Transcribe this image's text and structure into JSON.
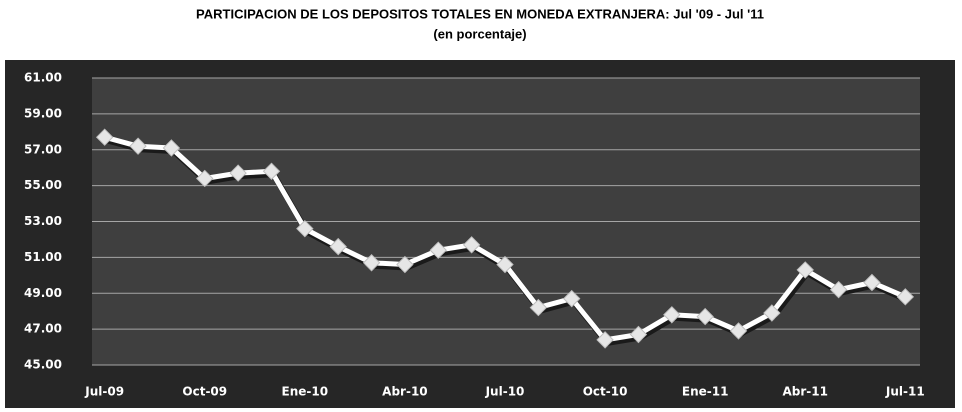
{
  "chart_data": {
    "type": "line",
    "title": "PARTICIPACION DE LOS DEPOSITOS TOTALES EN MONEDA EXTRANJERA: Jul '09 - Jul '11",
    "subtitle": "(en porcentaje)",
    "categories": [
      "Jul-09",
      null,
      null,
      "Oct-09",
      null,
      null,
      "Ene-10",
      null,
      null,
      "Abr-10",
      null,
      null,
      "Jul-10",
      null,
      null,
      "Oct-10",
      null,
      null,
      "Ene-11",
      null,
      null,
      "Abr-11",
      null,
      null,
      "Jul-11"
    ],
    "values": [
      57.7,
      57.2,
      57.1,
      55.4,
      55.7,
      55.8,
      52.6,
      51.6,
      50.7,
      50.6,
      51.4,
      51.7,
      50.6,
      48.2,
      48.7,
      46.4,
      46.7,
      47.8,
      47.7,
      46.9,
      47.9,
      50.3,
      49.2,
      49.6,
      48.8
    ],
    "color": "#ffffff",
    "ylim": [
      45,
      61
    ],
    "yticks": [
      {
        "value": 45,
        "label": "45.00"
      },
      {
        "value": 47,
        "label": "47.00"
      },
      {
        "value": 49,
        "label": "49.00"
      },
      {
        "value": 51,
        "label": "51.00"
      },
      {
        "value": 53,
        "label": "53.00"
      },
      {
        "value": 55,
        "label": "55.00"
      },
      {
        "value": 57,
        "label": "57.00"
      },
      {
        "value": 59,
        "label": "59.00"
      },
      {
        "value": 61,
        "label": "61.00"
      }
    ],
    "grid": true
  }
}
